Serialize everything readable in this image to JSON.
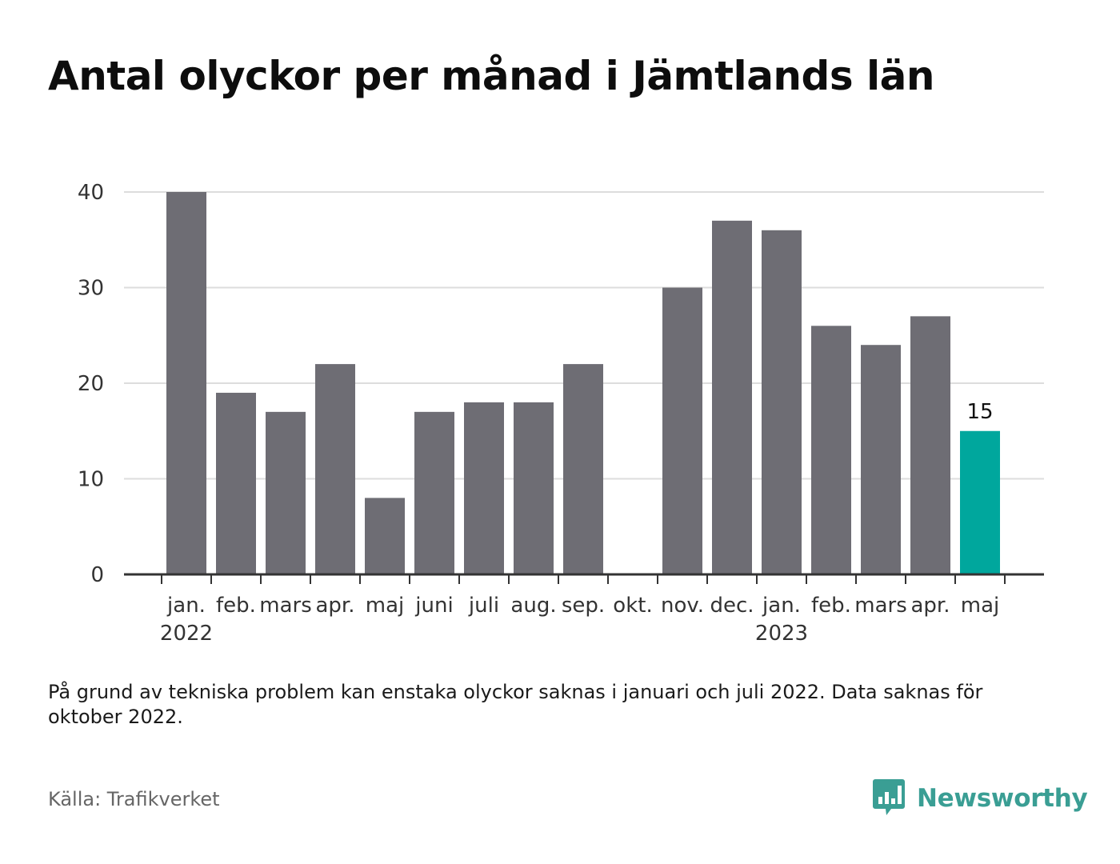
{
  "title": "Antal olyckor per månad i Jämtlands län",
  "footnote": "På grund av tekniska problem kan enstaka olyckor saknas i januari och juli 2022. Data saknas för oktober 2022.",
  "source": "Källa: Trafikverket",
  "brand": {
    "name": "Newsworthy",
    "icon": "newsworthy-logo-icon",
    "color": "#3a9e94"
  },
  "chart_data": {
    "type": "bar",
    "categories": [
      "jan.",
      "feb.",
      "mars",
      "apr.",
      "maj",
      "juni",
      "juli",
      "aug.",
      "sep.",
      "okt.",
      "nov.",
      "dec.",
      "jan.",
      "feb.",
      "mars",
      "apr.",
      "maj"
    ],
    "years": [
      {
        "label": "2022",
        "index": 0
      },
      {
        "label": "2023",
        "index": 12
      }
    ],
    "values": [
      40,
      19,
      17,
      22,
      8,
      17,
      18,
      18,
      22,
      null,
      30,
      37,
      36,
      26,
      24,
      27,
      15
    ],
    "highlight_index": 16,
    "data_labels": [
      {
        "index": 16,
        "text": "15"
      }
    ],
    "ylim": [
      0,
      40
    ],
    "yticks": [
      0,
      10,
      20,
      30,
      40
    ],
    "grid": true,
    "colors": {
      "bar": "#6e6d74",
      "highlight": "#00a79d",
      "grid": "#dddddd",
      "axis": "#333333"
    }
  }
}
